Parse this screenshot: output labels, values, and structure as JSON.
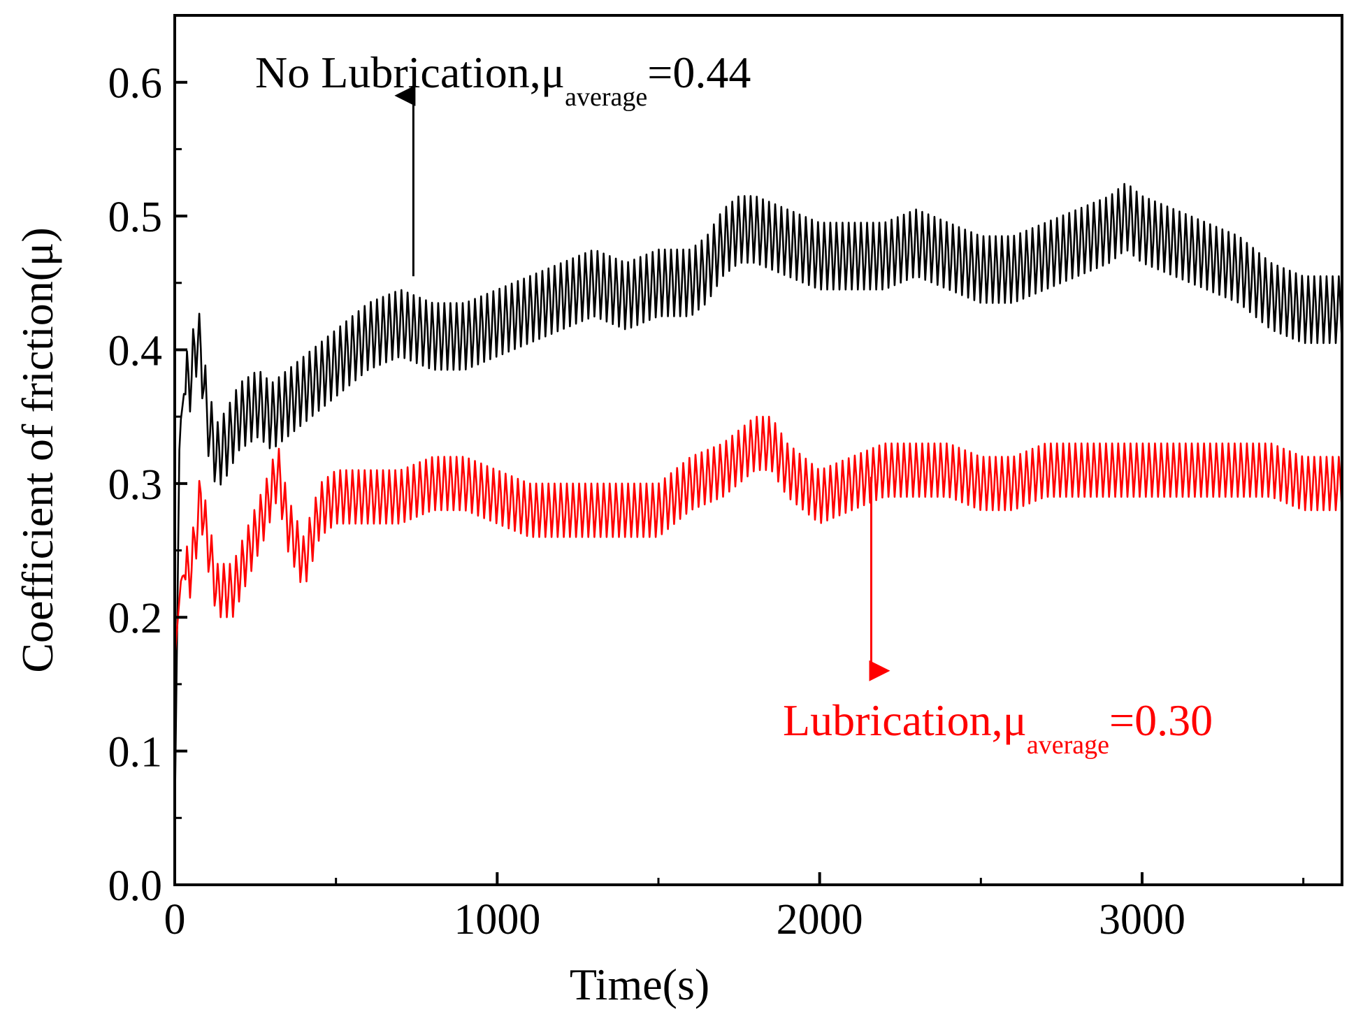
{
  "chart_data": {
    "type": "line",
    "title": "",
    "xlabel": "Time(s)",
    "ylabel": "Coefficient of friction(μ)",
    "xlim": [
      0,
      3620
    ],
    "ylim": [
      0.0,
      0.65
    ],
    "x_ticks": [
      0,
      1000,
      2000,
      3000
    ],
    "x_tick_labels": [
      "0",
      "1000",
      "2000",
      "3000"
    ],
    "x_minor_ticks": [
      500,
      1500,
      2500,
      3500
    ],
    "y_ticks": [
      0.0,
      0.1,
      0.2,
      0.3,
      0.4,
      0.5,
      0.6
    ],
    "y_tick_labels": [
      "0.0",
      "0.1",
      "0.2",
      "0.3",
      "0.4",
      "0.5",
      "0.6"
    ],
    "y_minor_ticks": [
      0.05,
      0.15,
      0.25,
      0.35,
      0.45,
      0.55
    ],
    "grid": false,
    "series": [
      {
        "name": "No Lubrication",
        "color": "#000000",
        "oscillation_amplitude": 0.025,
        "oscillation_period_s": 19,
        "x": [
          0,
          8,
          15,
          30,
          50,
          70,
          85,
          100,
          130,
          160,
          200,
          260,
          300,
          400,
          500,
          600,
          700,
          800,
          900,
          1000,
          1100,
          1200,
          1300,
          1400,
          1500,
          1600,
          1650,
          1700,
          1750,
          1800,
          1900,
          2000,
          2100,
          2200,
          2300,
          2400,
          2500,
          2600,
          2700,
          2800,
          2900,
          2950,
          3000,
          3100,
          3200,
          3300,
          3400,
          3500,
          3620
        ],
        "y": [
          0.05,
          0.2,
          0.34,
          0.37,
          0.38,
          0.41,
          0.39,
          0.35,
          0.32,
          0.33,
          0.35,
          0.36,
          0.35,
          0.37,
          0.39,
          0.41,
          0.42,
          0.41,
          0.41,
          0.42,
          0.43,
          0.44,
          0.45,
          0.44,
          0.45,
          0.45,
          0.46,
          0.48,
          0.49,
          0.49,
          0.48,
          0.47,
          0.47,
          0.47,
          0.48,
          0.47,
          0.46,
          0.46,
          0.47,
          0.48,
          0.49,
          0.5,
          0.49,
          0.48,
          0.47,
          0.46,
          0.44,
          0.43,
          0.43
        ]
      },
      {
        "name": "Lubrication",
        "color": "#ff0000",
        "oscillation_amplitude": 0.02,
        "oscillation_period_s": 19,
        "x": [
          0,
          10,
          20,
          50,
          70,
          80,
          100,
          130,
          180,
          230,
          280,
          320,
          350,
          400,
          450,
          500,
          600,
          700,
          800,
          900,
          1000,
          1100,
          1200,
          1300,
          1400,
          1500,
          1550,
          1600,
          1700,
          1800,
          1850,
          1900,
          2000,
          2100,
          2200,
          2300,
          2400,
          2500,
          2600,
          2700,
          2800,
          2900,
          3000,
          3100,
          3200,
          3300,
          3400,
          3500,
          3620
        ],
        "y": [
          0.17,
          0.2,
          0.23,
          0.235,
          0.27,
          0.29,
          0.26,
          0.22,
          0.22,
          0.25,
          0.28,
          0.31,
          0.27,
          0.24,
          0.28,
          0.29,
          0.29,
          0.29,
          0.3,
          0.3,
          0.29,
          0.28,
          0.28,
          0.28,
          0.28,
          0.28,
          0.29,
          0.3,
          0.31,
          0.33,
          0.33,
          0.31,
          0.29,
          0.3,
          0.31,
          0.31,
          0.31,
          0.3,
          0.3,
          0.31,
          0.31,
          0.31,
          0.31,
          0.31,
          0.31,
          0.31,
          0.31,
          0.3,
          0.3
        ]
      }
    ],
    "annotations": [
      {
        "id": "nolub",
        "color": "#000000",
        "text": "No Lubrication,μ",
        "subscript": "average",
        "suffix": "=0.44",
        "arrow_from": [
          740,
          0.455
        ],
        "arrow_to": [
          740,
          0.59
        ]
      },
      {
        "id": "lub",
        "color": "#ff0000",
        "text": "Lubrication,μ",
        "subscript": "average",
        "suffix": "=0.30",
        "arrow_from": [
          2160,
          0.305
        ],
        "arrow_to": [
          2160,
          0.16
        ]
      }
    ]
  }
}
